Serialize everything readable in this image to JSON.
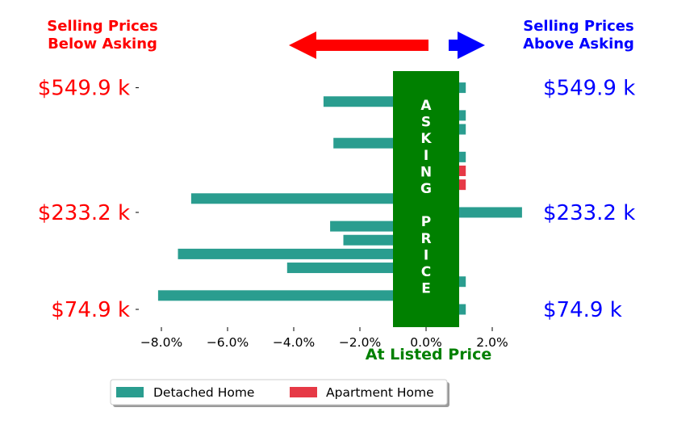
{
  "chart_data": {
    "type": "bar",
    "orientation": "horizontal",
    "xlabel": "At Listed Price",
    "xlim": [
      -8.7,
      3.3
    ],
    "x_ticks": [
      -8.0,
      -6.0,
      -4.0,
      -2.0,
      0.0,
      2.0
    ],
    "x_tick_labels": [
      "−8.0%",
      "−6.0%",
      "−4.0%",
      "−2.0%",
      "0.0%",
      "2.0%"
    ],
    "rows": 17,
    "categories": [
      "Detached Home",
      "Detached Home",
      "Detached Home",
      "Detached Home",
      "Detached Home",
      "Detached Home",
      "Detached Home",
      "Detached Home",
      "Detached Home",
      "Apartment Home",
      "Apartment Home",
      "Detached Home",
      "Detached Home",
      "Detached Home",
      "Detached Home",
      "Detached Home",
      "Detached Home"
    ],
    "values": [
      1.2,
      -8.1,
      1.2,
      -4.2,
      -7.5,
      -2.5,
      -2.9,
      2.9,
      -7.1,
      1.2,
      1.2,
      1.2,
      -2.8,
      1.2,
      1.2,
      -3.1,
      1.2
    ],
    "series": [
      {
        "name": "Detached Home",
        "color": "#2a9d8f"
      },
      {
        "name": "Apartment Home",
        "color": "#e63946"
      }
    ],
    "left_tick_labels": [
      "$549.9 k",
      "$233.2 k",
      "$74.9 k"
    ],
    "right_tick_labels": [
      "$549.9 k",
      "$233.2 k",
      "$74.9 k"
    ],
    "label_rows": [
      16,
      7,
      0
    ],
    "annotations": {
      "below_title": [
        "Selling Prices",
        "Below Asking"
      ],
      "above_title": [
        "Selling Prices",
        "Above Asking"
      ],
      "asking_letters": [
        "A",
        "S",
        "K",
        "I",
        "N",
        "G",
        "",
        "P",
        "R",
        "I",
        "C",
        "E"
      ]
    },
    "asking_band": [
      -1.0,
      1.0
    ],
    "legend": "bottom-center",
    "grid": false
  },
  "colors": {
    "detached": "#2a9d8f",
    "apartment": "#e63946",
    "below": "#ff0000",
    "above": "#0000ff",
    "asking": "#008000"
  }
}
